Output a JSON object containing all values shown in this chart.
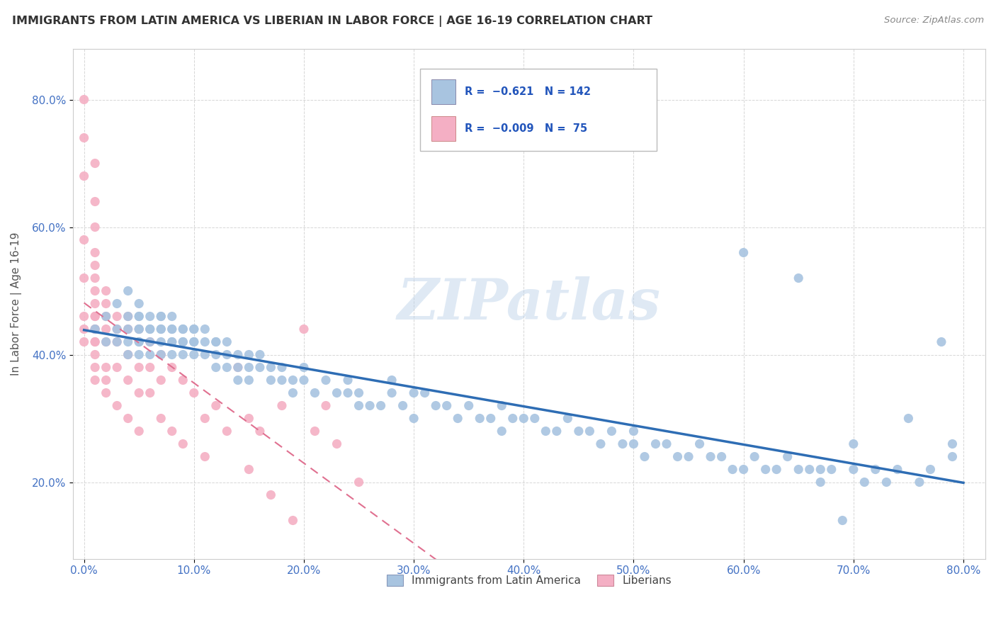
{
  "title": "IMMIGRANTS FROM LATIN AMERICA VS LIBERIAN IN LABOR FORCE | AGE 16-19 CORRELATION CHART",
  "source": "Source: ZipAtlas.com",
  "ylabel": "In Labor Force | Age 16-19",
  "xlim": [
    -0.01,
    0.82
  ],
  "ylim": [
    0.08,
    0.88
  ],
  "xticks": [
    0.0,
    0.1,
    0.2,
    0.3,
    0.4,
    0.5,
    0.6,
    0.7,
    0.8
  ],
  "xticklabels": [
    "0.0%",
    "10.0%",
    "20.0%",
    "30.0%",
    "40.0%",
    "50.0%",
    "60.0%",
    "70.0%",
    "80.0%"
  ],
  "yticks": [
    0.2,
    0.4,
    0.6,
    0.8
  ],
  "yticklabels": [
    "20.0%",
    "40.0%",
    "60.0%",
    "80.0%"
  ],
  "blue_color": "#a8c4e0",
  "pink_color": "#f4afc4",
  "blue_line_color": "#2e6db4",
  "pink_line_color": "#e07090",
  "legend_label1": "Immigrants from Latin America",
  "legend_label2": "Liberians",
  "watermark": "ZIPatlas",
  "blue_scatter_x": [
    0.01,
    0.02,
    0.02,
    0.03,
    0.03,
    0.03,
    0.04,
    0.04,
    0.04,
    0.04,
    0.04,
    0.05,
    0.05,
    0.05,
    0.05,
    0.05,
    0.05,
    0.05,
    0.05,
    0.06,
    0.06,
    0.06,
    0.06,
    0.06,
    0.07,
    0.07,
    0.07,
    0.07,
    0.07,
    0.07,
    0.08,
    0.08,
    0.08,
    0.08,
    0.08,
    0.08,
    0.09,
    0.09,
    0.09,
    0.09,
    0.09,
    0.1,
    0.1,
    0.1,
    0.1,
    0.1,
    0.11,
    0.11,
    0.11,
    0.12,
    0.12,
    0.12,
    0.12,
    0.13,
    0.13,
    0.13,
    0.14,
    0.14,
    0.14,
    0.15,
    0.15,
    0.15,
    0.16,
    0.16,
    0.17,
    0.17,
    0.18,
    0.18,
    0.19,
    0.19,
    0.2,
    0.2,
    0.21,
    0.22,
    0.23,
    0.24,
    0.24,
    0.25,
    0.25,
    0.26,
    0.27,
    0.28,
    0.28,
    0.29,
    0.3,
    0.3,
    0.31,
    0.32,
    0.33,
    0.34,
    0.35,
    0.36,
    0.37,
    0.38,
    0.38,
    0.39,
    0.4,
    0.41,
    0.42,
    0.43,
    0.44,
    0.45,
    0.46,
    0.47,
    0.48,
    0.49,
    0.5,
    0.5,
    0.51,
    0.52,
    0.53,
    0.54,
    0.55,
    0.56,
    0.57,
    0.58,
    0.59,
    0.6,
    0.6,
    0.61,
    0.62,
    0.63,
    0.64,
    0.65,
    0.65,
    0.66,
    0.67,
    0.67,
    0.68,
    0.69,
    0.7,
    0.7,
    0.71,
    0.72,
    0.73,
    0.74,
    0.75,
    0.76,
    0.77,
    0.78,
    0.79,
    0.79
  ],
  "blue_scatter_y": [
    0.44,
    0.46,
    0.42,
    0.48,
    0.44,
    0.42,
    0.5,
    0.46,
    0.44,
    0.42,
    0.4,
    0.48,
    0.46,
    0.44,
    0.42,
    0.4,
    0.44,
    0.46,
    0.42,
    0.44,
    0.46,
    0.42,
    0.4,
    0.44,
    0.46,
    0.44,
    0.42,
    0.46,
    0.44,
    0.4,
    0.44,
    0.42,
    0.46,
    0.44,
    0.42,
    0.4,
    0.44,
    0.42,
    0.4,
    0.44,
    0.42,
    0.44,
    0.42,
    0.4,
    0.44,
    0.42,
    0.42,
    0.4,
    0.44,
    0.42,
    0.4,
    0.38,
    0.42,
    0.4,
    0.38,
    0.42,
    0.4,
    0.38,
    0.36,
    0.4,
    0.38,
    0.36,
    0.4,
    0.38,
    0.38,
    0.36,
    0.38,
    0.36,
    0.36,
    0.34,
    0.38,
    0.36,
    0.34,
    0.36,
    0.34,
    0.36,
    0.34,
    0.34,
    0.32,
    0.32,
    0.32,
    0.36,
    0.34,
    0.32,
    0.34,
    0.3,
    0.34,
    0.32,
    0.32,
    0.3,
    0.32,
    0.3,
    0.3,
    0.32,
    0.28,
    0.3,
    0.3,
    0.3,
    0.28,
    0.28,
    0.3,
    0.28,
    0.28,
    0.26,
    0.28,
    0.26,
    0.28,
    0.26,
    0.24,
    0.26,
    0.26,
    0.24,
    0.24,
    0.26,
    0.24,
    0.24,
    0.22,
    0.56,
    0.22,
    0.24,
    0.22,
    0.22,
    0.24,
    0.52,
    0.22,
    0.22,
    0.2,
    0.22,
    0.22,
    0.14,
    0.26,
    0.22,
    0.2,
    0.22,
    0.2,
    0.22,
    0.3,
    0.2,
    0.22,
    0.42,
    0.26,
    0.24
  ],
  "pink_scatter_x": [
    0.0,
    0.0,
    0.0,
    0.0,
    0.0,
    0.0,
    0.0,
    0.0,
    0.01,
    0.01,
    0.01,
    0.01,
    0.01,
    0.01,
    0.01,
    0.01,
    0.01,
    0.01,
    0.01,
    0.01,
    0.01,
    0.01,
    0.01,
    0.01,
    0.01,
    0.02,
    0.02,
    0.02,
    0.02,
    0.02,
    0.02,
    0.02,
    0.02,
    0.03,
    0.03,
    0.03,
    0.03,
    0.03,
    0.04,
    0.04,
    0.04,
    0.04,
    0.04,
    0.05,
    0.05,
    0.05,
    0.05,
    0.06,
    0.06,
    0.06,
    0.07,
    0.07,
    0.07,
    0.08,
    0.08,
    0.09,
    0.09,
    0.1,
    0.11,
    0.11,
    0.12,
    0.13,
    0.14,
    0.15,
    0.15,
    0.16,
    0.17,
    0.18,
    0.19,
    0.2,
    0.21,
    0.22,
    0.23,
    0.25
  ],
  "pink_scatter_y": [
    0.44,
    0.46,
    0.74,
    0.58,
    0.8,
    0.68,
    0.52,
    0.42,
    0.44,
    0.46,
    0.5,
    0.54,
    0.6,
    0.64,
    0.7,
    0.44,
    0.42,
    0.48,
    0.52,
    0.56,
    0.38,
    0.36,
    0.4,
    0.42,
    0.46,
    0.44,
    0.46,
    0.48,
    0.42,
    0.38,
    0.34,
    0.36,
    0.5,
    0.44,
    0.46,
    0.42,
    0.38,
    0.32,
    0.44,
    0.46,
    0.4,
    0.36,
    0.3,
    0.44,
    0.38,
    0.34,
    0.28,
    0.42,
    0.38,
    0.34,
    0.4,
    0.36,
    0.3,
    0.38,
    0.28,
    0.36,
    0.26,
    0.34,
    0.3,
    0.24,
    0.32,
    0.28,
    0.38,
    0.3,
    0.22,
    0.28,
    0.18,
    0.32,
    0.14,
    0.44,
    0.28,
    0.32,
    0.26,
    0.2
  ]
}
